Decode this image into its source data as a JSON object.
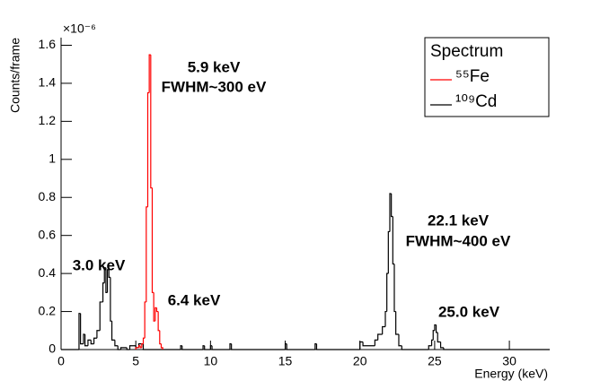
{
  "chart_data": {
    "type": "histogram",
    "y_label": "Counts/frame",
    "x_label": "Energy (keV)",
    "y_exponent": "×10⁻⁶",
    "legend_title": "Spectrum",
    "legend": "top-right",
    "xlim": [
      0,
      32.7
    ],
    "ylim": [
      0,
      1.64
    ],
    "xticks": [
      0,
      5,
      10,
      15,
      20,
      25,
      30
    ],
    "yticks": [
      0,
      0.2,
      0.4,
      0.6,
      0.8,
      1,
      1.2,
      1.4,
      1.6
    ],
    "series": [
      {
        "name": "⁵⁵Fe",
        "color": "#ff0000",
        "bins": [
          5.0,
          5.1,
          5.2,
          5.3,
          5.4,
          5.5,
          5.6,
          5.7,
          5.8,
          5.9,
          6.0,
          6.1,
          6.2,
          6.3,
          6.4,
          6.5,
          6.6,
          6.7,
          6.8
        ],
        "values": [
          0.01,
          0.01,
          0.02,
          0.01,
          0.03,
          0.06,
          0.25,
          0.75,
          1.35,
          1.55,
          0.85,
          0.3,
          0.15,
          0.22,
          0.2,
          0.1,
          0.03,
          0.01
        ]
      },
      {
        "name": "¹⁰⁹Cd",
        "color": "#000000",
        "bins": [
          0,
          1.2,
          1.3,
          1.5,
          1.6,
          1.8,
          2.0,
          2.2,
          2.4,
          2.6,
          2.8,
          2.9,
          3.0,
          3.1,
          3.2,
          3.3,
          3.4,
          3.6,
          3.8,
          4.0,
          4.4,
          4.6,
          5.0,
          5.2,
          5.5,
          8.0,
          8.1,
          9.5,
          9.6,
          10.0,
          10.1,
          11.3,
          11.4,
          15.0,
          15.1,
          17.0,
          17.1,
          20.0,
          20.2,
          21.0,
          21.2,
          21.5,
          21.7,
          21.8,
          21.9,
          22.0,
          22.1,
          22.2,
          22.3,
          22.4,
          22.6,
          22.8,
          24.6,
          24.8,
          24.9,
          25.0,
          25.1,
          25.2,
          25.4,
          25.6,
          32.7
        ],
        "values": [
          0,
          0.19,
          0.03,
          0.08,
          0.02,
          0.05,
          0.03,
          0.06,
          0.1,
          0.25,
          0.35,
          0.43,
          0.3,
          0.42,
          0.38,
          0.15,
          0.05,
          0.02,
          0,
          0.01,
          0,
          0.02,
          0.01,
          0.03,
          0,
          0.02,
          0,
          0.02,
          0,
          0.02,
          0,
          0.03,
          0,
          0.03,
          0,
          0.03,
          0,
          0.04,
          0.02,
          0.05,
          0.08,
          0.12,
          0.2,
          0.4,
          0.62,
          0.82,
          0.7,
          0.45,
          0.2,
          0.08,
          0.02,
          0,
          0.02,
          0.05,
          0.1,
          0.13,
          0.09,
          0.04,
          0.01,
          0
        ]
      }
    ],
    "annotations": [
      "5.9 keV",
      "FWHM~300 eV",
      "6.4 keV",
      "3.0 keV",
      "22.1 keV",
      "FWHM~400 eV",
      "25.0 keV"
    ]
  }
}
